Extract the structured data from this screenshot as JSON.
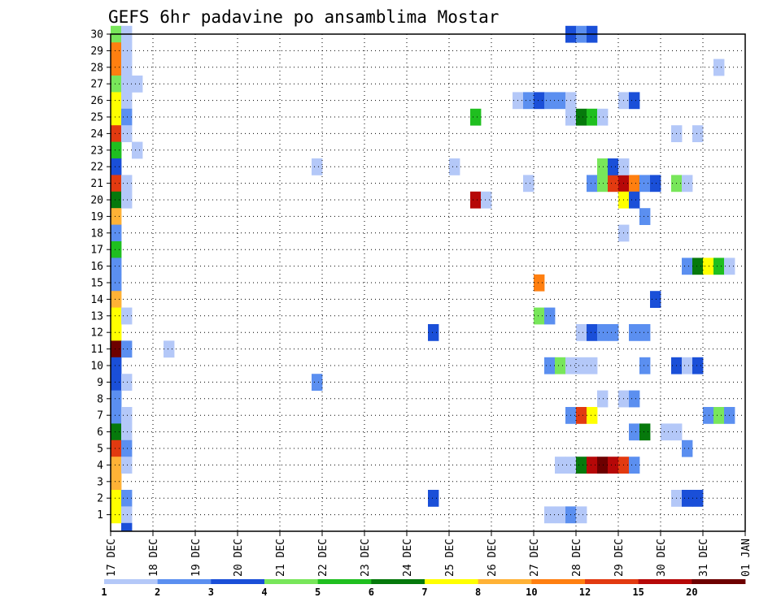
{
  "chart_data": {
    "type": "heatmap",
    "title": "GEFS 6hr padavine po ansamblima Mostar",
    "x_tick_labels": [
      "17 DEC",
      "18 DEC",
      "19 DEC",
      "20 DEC",
      "21 DEC",
      "22 DEC",
      "23 DEC",
      "24 DEC",
      "25 DEC",
      "26 DEC",
      "27 DEC",
      "28 DEC",
      "29 DEC",
      "30 DEC",
      "31 DEC",
      "01 JAN"
    ],
    "y_tick_labels": [
      "1",
      "2",
      "3",
      "4",
      "5",
      "6",
      "7",
      "8",
      "9",
      "10",
      "11",
      "12",
      "13",
      "14",
      "15",
      "16",
      "17",
      "18",
      "19",
      "20",
      "21",
      "22",
      "23",
      "24",
      "25",
      "26",
      "27",
      "28",
      "29",
      "30"
    ],
    "xlim": [
      0,
      60
    ],
    "ylim": [
      0.5,
      30.5
    ],
    "grid": true,
    "steps_per_day": 4,
    "levels": [
      {
        "label": "1",
        "color": "#b4c8f8"
      },
      {
        "label": "2",
        "color": "#5b8ff0"
      },
      {
        "label": "3",
        "color": "#1a4fd8"
      },
      {
        "label": "4",
        "color": "#78e65a"
      },
      {
        "label": "5",
        "color": "#1fbf1f"
      },
      {
        "label": "6",
        "color": "#06790c"
      },
      {
        "label": "7",
        "color": "#ffff00"
      },
      {
        "label": "8",
        "color": "#ffb236"
      },
      {
        "label": "10",
        "color": "#ff7f10"
      },
      {
        "label": "12",
        "color": "#e23a10"
      },
      {
        "label": "15",
        "color": "#b60808"
      },
      {
        "label": "20",
        "color": "#6d0000"
      }
    ],
    "legend_labels": [
      "1",
      "2",
      "3",
      "4",
      "5",
      "6",
      "7",
      "8",
      "10",
      "12",
      "15",
      "20"
    ],
    "cells": [
      [
        0,
        30,
        3
      ],
      [
        0,
        29,
        8
      ],
      [
        0,
        28,
        8
      ],
      [
        0,
        27,
        3
      ],
      [
        0,
        26,
        6
      ],
      [
        0,
        25,
        6
      ],
      [
        0,
        24,
        9
      ],
      [
        0,
        23,
        4
      ],
      [
        0,
        22,
        2
      ],
      [
        0,
        21,
        9
      ],
      [
        0,
        20,
        5
      ],
      [
        0,
        19,
        7
      ],
      [
        0,
        18,
        1
      ],
      [
        0,
        17,
        4
      ],
      [
        0,
        16,
        1
      ],
      [
        0,
        15,
        1
      ],
      [
        0,
        14,
        7
      ],
      [
        0,
        13,
        6
      ],
      [
        0,
        12,
        6
      ],
      [
        0,
        11,
        11
      ],
      [
        0,
        10,
        2
      ],
      [
        0,
        9,
        2
      ],
      [
        0,
        8,
        1
      ],
      [
        0,
        7,
        1
      ],
      [
        0,
        6,
        5
      ],
      [
        0,
        5,
        9
      ],
      [
        0,
        4,
        7
      ],
      [
        0,
        3,
        7
      ],
      [
        0,
        2,
        6
      ],
      [
        0,
        1,
        6
      ],
      [
        1,
        30,
        0
      ],
      [
        1,
        29,
        0
      ],
      [
        1,
        28,
        0
      ],
      [
        1,
        27,
        0
      ],
      [
        1,
        26,
        0
      ],
      [
        1,
        25,
        1
      ],
      [
        1,
        24,
        0
      ],
      [
        1,
        21,
        0
      ],
      [
        1,
        20,
        0
      ],
      [
        1,
        13,
        0
      ],
      [
        1,
        11,
        1
      ],
      [
        1,
        9,
        0
      ],
      [
        1,
        7,
        0
      ],
      [
        1,
        6,
        0
      ],
      [
        1,
        5,
        1
      ],
      [
        1,
        4,
        0
      ],
      [
        1,
        2,
        1
      ],
      [
        1,
        1,
        0
      ],
      [
        1,
        0,
        2
      ],
      [
        2,
        27,
        0
      ],
      [
        2,
        23,
        0
      ],
      [
        5,
        11,
        0
      ],
      [
        19,
        22,
        0
      ],
      [
        19,
        9,
        1
      ],
      [
        30,
        12,
        2
      ],
      [
        30,
        2,
        2
      ],
      [
        32,
        22,
        0
      ],
      [
        34,
        25,
        4
      ],
      [
        34,
        20,
        10
      ],
      [
        35,
        20,
        0
      ],
      [
        38,
        26,
        0
      ],
      [
        39,
        26,
        1
      ],
      [
        40,
        26,
        2
      ],
      [
        41,
        26,
        1
      ],
      [
        42,
        26,
        1
      ],
      [
        43,
        26,
        0
      ],
      [
        39,
        21,
        0
      ],
      [
        40,
        15,
        8
      ],
      [
        40,
        13,
        3
      ],
      [
        41,
        13,
        1
      ],
      [
        41,
        10,
        1
      ],
      [
        42,
        10,
        3
      ],
      [
        43,
        10,
        0
      ],
      [
        44,
        10,
        0
      ],
      [
        45,
        10,
        0
      ],
      [
        41,
        1,
        0
      ],
      [
        42,
        1,
        0
      ],
      [
        43,
        1,
        1
      ],
      [
        44,
        1,
        0
      ],
      [
        42,
        4,
        0
      ],
      [
        43,
        4,
        0
      ],
      [
        44,
        4,
        5
      ],
      [
        45,
        4,
        10
      ],
      [
        46,
        4,
        11
      ],
      [
        47,
        4,
        10
      ],
      [
        48,
        4,
        9
      ],
      [
        49,
        4,
        1
      ],
      [
        43,
        7,
        1
      ],
      [
        44,
        7,
        9
      ],
      [
        45,
        7,
        6
      ],
      [
        43,
        30,
        2
      ],
      [
        44,
        30,
        1
      ],
      [
        45,
        30,
        2
      ],
      [
        43,
        25,
        0
      ],
      [
        44,
        25,
        5
      ],
      [
        45,
        25,
        4
      ],
      [
        46,
        25,
        0
      ],
      [
        44,
        12,
        0
      ],
      [
        45,
        12,
        2
      ],
      [
        46,
        12,
        1
      ],
      [
        47,
        12,
        1
      ],
      [
        49,
        12,
        1
      ],
      [
        45,
        21,
        1
      ],
      [
        46,
        21,
        3
      ],
      [
        47,
        21,
        9
      ],
      [
        48,
        21,
        10
      ],
      [
        49,
        21,
        8
      ],
      [
        50,
        21,
        1
      ],
      [
        51,
        21,
        2
      ],
      [
        46,
        22,
        3
      ],
      [
        47,
        22,
        2
      ],
      [
        48,
        22,
        0
      ],
      [
        46,
        8,
        0
      ],
      [
        48,
        8,
        0
      ],
      [
        49,
        8,
        1
      ],
      [
        48,
        26,
        0
      ],
      [
        49,
        26,
        2
      ],
      [
        48,
        20,
        6
      ],
      [
        49,
        20,
        2
      ],
      [
        48,
        18,
        0
      ],
      [
        50,
        19,
        1
      ],
      [
        49,
        6,
        1
      ],
      [
        50,
        6,
        5
      ],
      [
        50,
        10,
        1
      ],
      [
        50,
        12,
        1
      ],
      [
        51,
        14,
        2
      ],
      [
        52,
        6,
        0
      ],
      [
        53,
        6,
        0
      ],
      [
        54,
        5,
        1
      ],
      [
        53,
        24,
        0
      ],
      [
        53,
        21,
        3
      ],
      [
        54,
        21,
        0
      ],
      [
        53,
        10,
        2
      ],
      [
        54,
        10,
        0
      ],
      [
        55,
        10,
        2
      ],
      [
        53,
        2,
        0
      ],
      [
        54,
        2,
        2
      ],
      [
        55,
        2,
        2
      ],
      [
        54,
        16,
        1
      ],
      [
        55,
        16,
        5
      ],
      [
        56,
        16,
        6
      ],
      [
        57,
        16,
        4
      ],
      [
        58,
        16,
        0
      ],
      [
        55,
        24,
        0
      ],
      [
        57,
        28,
        0
      ],
      [
        56,
        7,
        1
      ],
      [
        57,
        7,
        3
      ],
      [
        58,
        7,
        1
      ]
    ]
  }
}
